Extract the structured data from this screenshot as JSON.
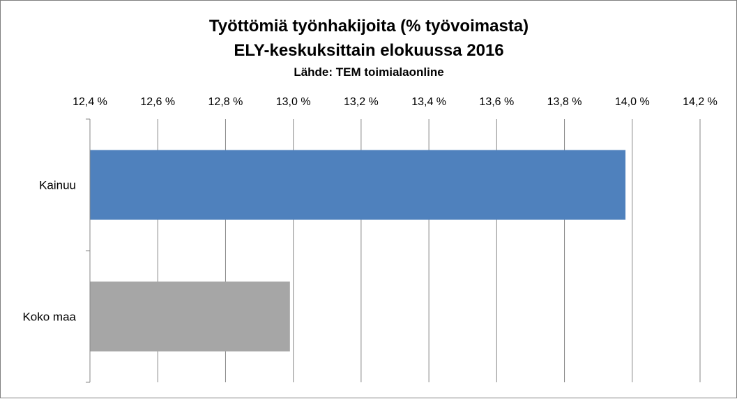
{
  "chart_data": {
    "type": "bar",
    "orientation": "horizontal",
    "title": "Työttömiä työnhakijoita (% työvoimasta)",
    "subtitle": "ELY-keskuksittain elokuussa 2016",
    "source": "Lähde: TEM toimialaonline",
    "categories": [
      "Kainuu",
      "Koko maa"
    ],
    "values": [
      13.98,
      12.99
    ],
    "colors": [
      "#4f81bd",
      "#a6a6a6"
    ],
    "xlim": [
      12.4,
      14.2
    ],
    "x_ticks": [
      "12,4 %",
      "12,6 %",
      "12,8 %",
      "13,0 %",
      "13,2 %",
      "13,4 %",
      "13,6 %",
      "13,8 %",
      "14,0 %",
      "14,2 %"
    ],
    "x_axis_position": "top",
    "grid": true,
    "legend": false
  }
}
